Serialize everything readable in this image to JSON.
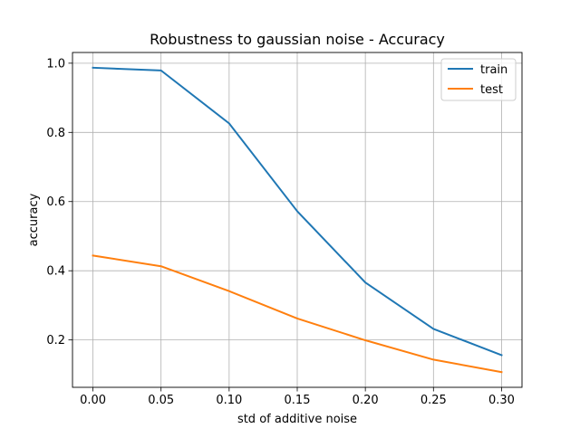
{
  "chart_data": {
    "type": "line",
    "title": "Robustness to gaussian noise - Accuracy",
    "xlabel": "std of additive noise",
    "ylabel": "accuracy",
    "x": [
      0.0,
      0.05,
      0.1,
      0.15,
      0.2,
      0.25,
      0.3
    ],
    "xticks": [
      0.0,
      0.05,
      0.1,
      0.15,
      0.2,
      0.25,
      0.3
    ],
    "xtick_labels": [
      "0.00",
      "0.05",
      "0.10",
      "0.15",
      "0.20",
      "0.25",
      "0.30"
    ],
    "yticks": [
      0.2,
      0.4,
      0.6,
      0.8,
      1.0
    ],
    "ytick_labels": [
      "0.2",
      "0.4",
      "0.6",
      "0.8",
      "1.0"
    ],
    "xlim": [
      -0.015,
      0.315
    ],
    "ylim": [
      0.063,
      1.031
    ],
    "grid": true,
    "legend_position": "top-right",
    "series": [
      {
        "name": "train",
        "color": "#1f77b4",
        "values": [
          0.987,
          0.979,
          0.826,
          0.572,
          0.366,
          0.232,
          0.156
        ]
      },
      {
        "name": "test",
        "color": "#ff7f0e",
        "values": [
          0.444,
          0.413,
          0.341,
          0.262,
          0.199,
          0.143,
          0.107
        ]
      }
    ]
  }
}
